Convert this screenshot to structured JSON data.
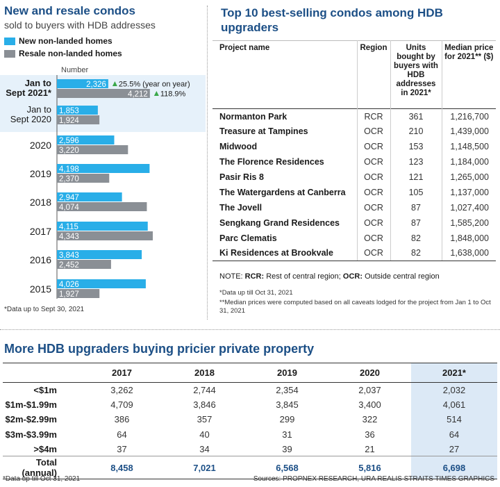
{
  "left_panel": {
    "title": "New and resale condos",
    "subtitle": "sold to buyers with HDB addresses",
    "legend": [
      {
        "label": "New non-landed homes",
        "color": "#29aee8"
      },
      {
        "label": "Resale non-landed homes",
        "color": "#8a8f95"
      }
    ],
    "footnote": "*Data up to Sept 30, 2021"
  },
  "chart_data": {
    "type": "bar",
    "orientation": "horizontal",
    "ylabel": "Number",
    "categories": [
      "Jan to Sept 2021*",
      "Jan to Sept 2020",
      "2020",
      "2019",
      "2018",
      "2017",
      "2016",
      "2015"
    ],
    "category_lines": [
      [
        "Jan to",
        "Sept 2021*"
      ],
      [
        "Jan to",
        "Sept 2020"
      ],
      [
        "2020"
      ],
      [
        "2019"
      ],
      [
        "2018"
      ],
      [
        "2017"
      ],
      [
        "2016"
      ],
      [
        "2015"
      ]
    ],
    "series": [
      {
        "name": "New non-landed homes",
        "color": "#29aee8",
        "values": [
          2326,
          1853,
          2596,
          4198,
          2947,
          4115,
          3843,
          4026
        ]
      },
      {
        "name": "Resale non-landed homes",
        "color": "#8a8f95",
        "values": [
          4212,
          1924,
          3220,
          2370,
          4074,
          4343,
          2452,
          1927
        ]
      }
    ],
    "value_labels": {
      "new": [
        "2,326",
        "1,853",
        "2,596",
        "4,198",
        "2,947",
        "4,115",
        "3,843",
        "4,026"
      ],
      "resale": [
        "4,212",
        "1,924",
        "3,220",
        "2,370",
        "4,074",
        "4,343",
        "2,452",
        "1,927"
      ]
    },
    "annotations": [
      {
        "series": "New non-landed homes",
        "category": "Jan to Sept 2021*",
        "text": "25.5% (year on year)"
      },
      {
        "series": "Resale non-landed homes",
        "category": "Jan to Sept 2021*",
        "text": "118.9%"
      }
    ],
    "highlight_categories": [
      "Jan to Sept 2021*",
      "Jan to Sept 2020"
    ],
    "highlight_color": "#e6f1fa",
    "xlim": [
      0,
      5000
    ],
    "grid": false
  },
  "top10": {
    "title": "Top 10 best-selling condos among HDB upgraders",
    "columns": [
      "Project name",
      "Region",
      "Units bought by buyers with HDB addresses in 2021*",
      "Median price for 2021** ($)"
    ],
    "rows": [
      [
        "Normanton Park",
        "RCR",
        "361",
        "1,216,700"
      ],
      [
        "Treasure at Tampines",
        "OCR",
        "210",
        "1,439,000"
      ],
      [
        "Midwood",
        "OCR",
        "153",
        "1,148,500"
      ],
      [
        "The Florence Residences",
        "OCR",
        "123",
        "1,184,000"
      ],
      [
        "Pasir Ris 8",
        "OCR",
        "121",
        "1,265,000"
      ],
      [
        "The Watergardens at Canberra",
        "OCR",
        "105",
        "1,137,000"
      ],
      [
        "The Jovell",
        "OCR",
        "87",
        "1,027,400"
      ],
      [
        "Sengkang Grand Residences",
        "OCR",
        "87",
        "1,585,200"
      ],
      [
        "Parc Clematis",
        "OCR",
        "82",
        "1,848,000"
      ],
      [
        "Ki Residences at Brookvale",
        "OCR",
        "82",
        "1,638,000"
      ]
    ],
    "note_prefix": "NOTE: ",
    "note_rcr": "RCR:",
    "note_rcr_text": " Rest of central region; ",
    "note_ocr": "OCR:",
    "note_ocr_text": " Outside central region",
    "footnote_a": "*Data up till Oct 31, 2021",
    "footnote_b": "**Median prices were computed based on all caveats lodged for the project from Jan 1 to Oct 31, 2021"
  },
  "bottom": {
    "title": "More HDB upgraders buying pricier private property",
    "columns": [
      "2017",
      "2018",
      "2019",
      "2020",
      "2021*"
    ],
    "rows": [
      {
        "label": "<$1m",
        "values": [
          "3,262",
          "2,744",
          "2,354",
          "2,037",
          "2,032"
        ]
      },
      {
        "label": "$1m-$1.99m",
        "values": [
          "4,709",
          "3,846",
          "3,845",
          "3,400",
          "4,061"
        ]
      },
      {
        "label": "$2m-$2.99m",
        "values": [
          "386",
          "357",
          "299",
          "322",
          "514"
        ]
      },
      {
        "label": "$3m-$3.99m",
        "values": [
          "64",
          "40",
          "31",
          "36",
          "64"
        ]
      },
      {
        "label": ">$4m",
        "values": [
          "37",
          "34",
          "39",
          "21",
          "27"
        ]
      }
    ],
    "total": {
      "label": "Total (annual)",
      "values": [
        "8,458",
        "7,021",
        "6,568",
        "5,816",
        "6,698"
      ]
    },
    "footnote": "*Data up till Oct 31, 2021",
    "sources": "Sources: PROPNEX RESEARCH, URA REALIS   STRAITS TIMES GRAPHICS"
  }
}
